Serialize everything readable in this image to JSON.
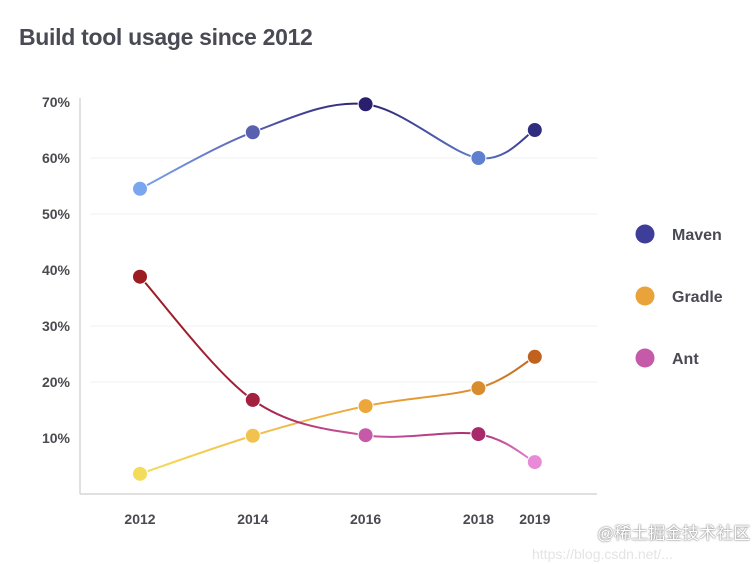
{
  "chart_data": {
    "type": "line",
    "title": "Build tool usage since 2012",
    "xlabel": "",
    "ylabel": "",
    "x": [
      2012,
      2014,
      2016,
      2018,
      2019
    ],
    "x_tick_labels": [
      "2012",
      "2014",
      "2016",
      "2018",
      "2019"
    ],
    "y_tick_labels": [
      "10%",
      "20%",
      "30%",
      "40%",
      "50%",
      "60%",
      "70%"
    ],
    "ylim": [
      0,
      70
    ],
    "grid": true,
    "legend_position": "right",
    "series": [
      {
        "name": "Maven",
        "color": "#3f3d9a",
        "values": [
          54.5,
          64.6,
          69.6,
          60,
          65
        ],
        "point_colors": [
          "#7aa6f0",
          "#5a5fb0",
          "#2a1f6e",
          "#5f7fcf",
          "#2f2d80"
        ]
      },
      {
        "name": "Gradle",
        "color": "#e8a33a",
        "values": [
          3.6,
          10.4,
          15.7,
          18.9,
          24.5
        ],
        "point_colors": [
          "#f3dc5a",
          "#f2c24e",
          "#eda63b",
          "#d98c2e",
          "#c0621d"
        ]
      },
      {
        "name": "Ant",
        "color": "#c45aa8",
        "values": [
          38.8,
          16.8,
          10.5,
          10.7,
          5.7
        ],
        "point_colors": [
          "#9c1c22",
          "#a3203e",
          "#c75aa8",
          "#a82a6a",
          "#e98ad8"
        ]
      }
    ]
  },
  "watermark": {
    "line1": "@稀土掘金技术社区",
    "line2": "https://blog.csdn.net/..."
  }
}
